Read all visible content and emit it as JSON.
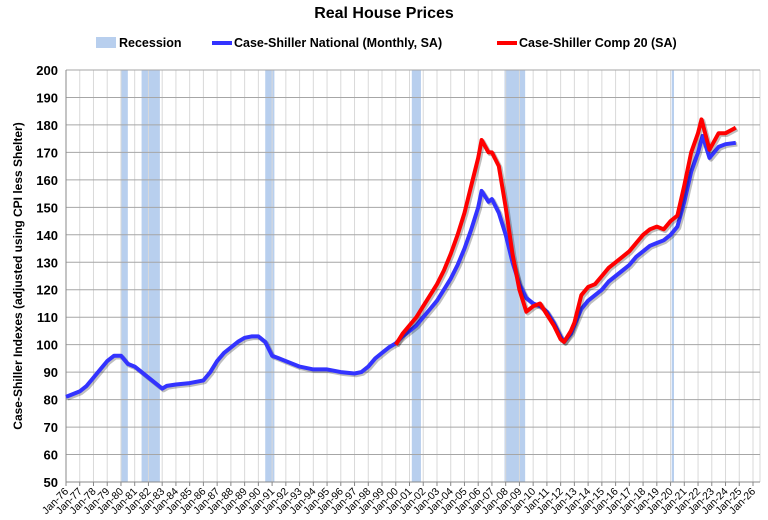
{
  "chart_data": {
    "type": "line",
    "title": "Real House Prices",
    "ylabel": "Case-Shiller Indexes (adjusted using CPI less Shelter)",
    "xlabel": "",
    "ylim": [
      50,
      200
    ],
    "yticks": [
      50,
      60,
      70,
      80,
      90,
      100,
      110,
      120,
      130,
      140,
      150,
      160,
      170,
      180,
      190,
      200
    ],
    "xlim": [
      "1976-01",
      "2026-01"
    ],
    "xtick_labels": [
      "Jan-76",
      "Jan-77",
      "Jan-78",
      "Jan-79",
      "Jan-80",
      "Jan-81",
      "Jan-82",
      "Jan-83",
      "Jan-84",
      "Jan-85",
      "Jan-86",
      "Jan-87",
      "Jan-88",
      "Jan-89",
      "Jan-90",
      "Jan-91",
      "Jan-92",
      "Jan-93",
      "Jan-94",
      "Jan-95",
      "Jan-96",
      "Jan-97",
      "Jan-98",
      "Jan-99",
      "Jan-00",
      "Jan-01",
      "Jan-02",
      "Jan-03",
      "Jan-04",
      "Jan-05",
      "Jan-06",
      "Jan-07",
      "Jan-08",
      "Jan-09",
      "Jan-10",
      "Jan-11",
      "Jan-12",
      "Jan-13",
      "Jan-14",
      "Jan-15",
      "Jan-16",
      "Jan-17",
      "Jan-18",
      "Jan-19",
      "Jan-20",
      "Jan-21",
      "Jan-22",
      "Jan-23",
      "Jan-24",
      "Jan-25",
      "Jan-26"
    ],
    "grid": true,
    "legend_placement": "top",
    "recession_label": "Recession",
    "recession_color": "#b8cfee",
    "recessions": [
      [
        "1980-01",
        "1980-07"
      ],
      [
        "1981-07",
        "1982-11"
      ],
      [
        "1990-07",
        "1991-03"
      ],
      [
        "2001-03",
        "2001-11"
      ],
      [
        "2007-12",
        "2009-06"
      ],
      [
        "2020-02",
        "2020-04"
      ]
    ],
    "series": [
      {
        "name": "Case-Shiller National (Monthly, SA)",
        "color": "#3333ff",
        "x": [
          "1976-01",
          "1977-01",
          "1977-07",
          "1978-01",
          "1978-07",
          "1979-01",
          "1979-07",
          "1980-01",
          "1980-07",
          "1981-01",
          "1981-07",
          "1982-01",
          "1982-07",
          "1983-01",
          "1983-05",
          "1984-01",
          "1985-01",
          "1986-01",
          "1986-07",
          "1987-01",
          "1987-07",
          "1988-01",
          "1988-07",
          "1989-01",
          "1989-07",
          "1990-01",
          "1990-07",
          "1991-01",
          "1991-07",
          "1992-01",
          "1993-01",
          "1994-01",
          "1995-01",
          "1996-01",
          "1997-01",
          "1997-07",
          "1998-01",
          "1998-07",
          "1999-01",
          "1999-07",
          "2000-01",
          "2000-07",
          "2001-01",
          "2001-07",
          "2002-01",
          "2002-07",
          "2003-01",
          "2003-07",
          "2004-01",
          "2004-07",
          "2005-01",
          "2005-07",
          "2006-01",
          "2006-04",
          "2006-10",
          "2007-01",
          "2007-07",
          "2008-01",
          "2008-07",
          "2009-01",
          "2009-07",
          "2010-01",
          "2010-07",
          "2011-01",
          "2011-07",
          "2012-01",
          "2012-04",
          "2012-10",
          "2013-01",
          "2013-07",
          "2014-01",
          "2014-07",
          "2015-01",
          "2015-07",
          "2016-01",
          "2016-07",
          "2017-01",
          "2017-07",
          "2018-01",
          "2018-07",
          "2019-01",
          "2019-07",
          "2020-01",
          "2020-07",
          "2021-01",
          "2021-07",
          "2022-01",
          "2022-05",
          "2022-11",
          "2023-07",
          "2024-01",
          "2024-10"
        ],
        "values": [
          81,
          83,
          85,
          88,
          91,
          94,
          96,
          96,
          93,
          92,
          90,
          88,
          86,
          84,
          85,
          85.5,
          86,
          87,
          90,
          94,
          97,
          99,
          101,
          102.5,
          103,
          103,
          101,
          96,
          95,
          94,
          92,
          91,
          91,
          90,
          89.5,
          90,
          92,
          95,
          97,
          99,
          100.5,
          103,
          105,
          107,
          110,
          113,
          116,
          120,
          124,
          129,
          135,
          142,
          150,
          156,
          152,
          153,
          148,
          140,
          130,
          122,
          117,
          115,
          114,
          112,
          108,
          103,
          101,
          104,
          107,
          113,
          116,
          118,
          120,
          123,
          125,
          127,
          129,
          132,
          134,
          136,
          137,
          138,
          140,
          143,
          152,
          163,
          170,
          176,
          168,
          172,
          173,
          173.5
        ]
      },
      {
        "name": "Case-Shiller Comp 20  (SA)",
        "color": "#ff0000",
        "x": [
          "2000-01",
          "2000-07",
          "2001-01",
          "2001-07",
          "2002-01",
          "2002-07",
          "2003-01",
          "2003-07",
          "2004-01",
          "2004-07",
          "2005-01",
          "2005-07",
          "2006-01",
          "2006-04",
          "2006-10",
          "2007-01",
          "2007-07",
          "2008-01",
          "2008-07",
          "2009-01",
          "2009-07",
          "2010-01",
          "2010-07",
          "2011-01",
          "2011-07",
          "2012-01",
          "2012-04",
          "2012-10",
          "2013-01",
          "2013-07",
          "2014-01",
          "2014-07",
          "2015-01",
          "2015-07",
          "2016-01",
          "2016-07",
          "2017-01",
          "2017-07",
          "2018-01",
          "2018-07",
          "2019-01",
          "2019-07",
          "2020-01",
          "2020-07",
          "2021-01",
          "2021-07",
          "2022-01",
          "2022-04",
          "2022-11",
          "2023-07",
          "2024-01",
          "2024-10"
        ],
        "values": [
          100,
          104,
          107,
          110,
          114,
          118,
          122,
          127,
          133,
          140,
          148,
          158,
          168,
          174.5,
          170,
          170,
          165,
          150,
          133,
          120,
          112,
          114,
          115,
          111,
          107,
          102,
          101,
          105,
          108,
          118,
          121,
          122,
          125,
          128,
          130,
          132,
          134,
          137,
          140,
          142,
          143,
          142,
          145,
          147,
          158,
          170,
          177,
          182,
          171,
          177,
          177,
          179
        ]
      }
    ]
  }
}
